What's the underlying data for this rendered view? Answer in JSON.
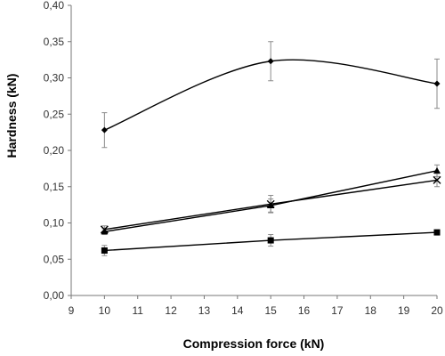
{
  "chart_data": {
    "type": "line",
    "xlabel": "Compression force (kN)",
    "ylabel": "Hardness (kN)",
    "xlim": [
      9,
      20
    ],
    "ylim": [
      0,
      0.4
    ],
    "x_ticks": [
      "9",
      "10",
      "11",
      "12",
      "13",
      "14",
      "15",
      "16",
      "17",
      "18",
      "19",
      "20"
    ],
    "y_ticks": [
      "0,00",
      "0,05",
      "0,10",
      "0,15",
      "0,20",
      "0,25",
      "0,30",
      "0,35",
      "0,40"
    ],
    "grid": false,
    "legend": "none",
    "series": [
      {
        "marker": "diamond",
        "smooth": true,
        "x": [
          10,
          15,
          20
        ],
        "y": [
          0.228,
          0.323,
          0.292
        ],
        "err": [
          0.024,
          0.027,
          0.034
        ]
      },
      {
        "marker": "triangle",
        "smooth": false,
        "x": [
          10,
          15,
          20
        ],
        "y": [
          0.088,
          0.124,
          0.172
        ],
        "err": [
          0.004,
          0.009,
          0.008
        ]
      },
      {
        "marker": "x",
        "smooth": false,
        "x": [
          10,
          15,
          20
        ],
        "y": [
          0.091,
          0.126,
          0.159
        ],
        "err": [
          0.005,
          0.012,
          0.009
        ]
      },
      {
        "marker": "square",
        "smooth": false,
        "x": [
          10,
          15,
          20
        ],
        "y": [
          0.062,
          0.076,
          0.087
        ],
        "err": [
          0.007,
          0.008,
          0.003
        ]
      }
    ],
    "colors": {
      "line": "#000000",
      "error_bar": "#8a8a8a",
      "axis": "#777777"
    }
  }
}
